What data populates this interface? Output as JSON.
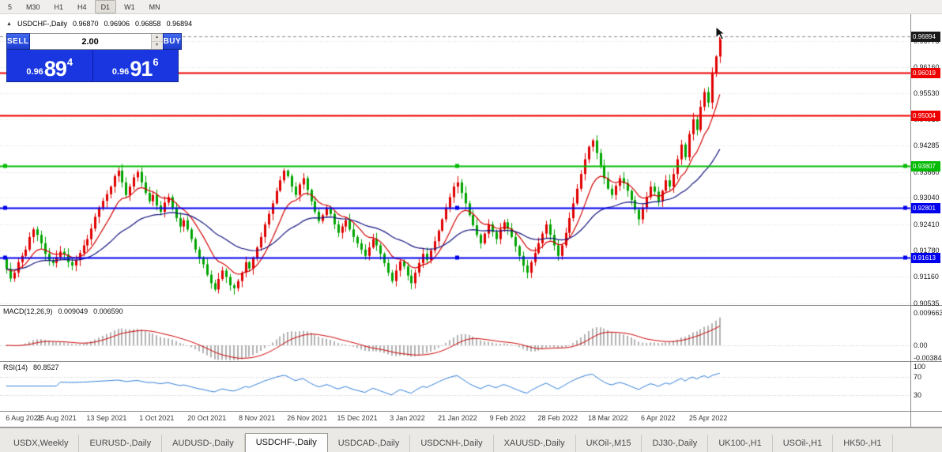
{
  "toolbar": {
    "timeframes": [
      {
        "label": "5",
        "active": false
      },
      {
        "label": "M30",
        "active": false
      },
      {
        "label": "H1",
        "active": false
      },
      {
        "label": "H4",
        "active": false
      },
      {
        "label": "D1",
        "active": true
      },
      {
        "label": "W1",
        "active": false
      },
      {
        "label": "MN",
        "active": false
      }
    ]
  },
  "chart": {
    "symbol_header": {
      "collapse_icon": "▲",
      "title": "USDCHF-,Daily",
      "open": "0.96870",
      "high": "0.96906",
      "low": "0.96858",
      "close": "0.96894"
    },
    "trade_panel": {
      "sell_label": "SELL",
      "buy_label": "BUY",
      "volume": "2.00",
      "sell_price": {
        "prefix": "0.96",
        "big": "89",
        "sup": "4"
      },
      "buy_price": {
        "prefix": "0.96",
        "big": "91",
        "sup": "6"
      }
    }
  },
  "chart_data": {
    "type": "candlestick",
    "symbol": "USDCHF-",
    "timeframe": "Daily",
    "ohlc_current": {
      "open": 0.9687,
      "high": 0.96906,
      "low": 0.96858,
      "close": 0.96894
    },
    "price_range": {
      "top": 0.9734,
      "bottom": 0.9049
    },
    "y_axis_ticks": [
      "0.96775",
      "0.96160",
      "0.95530",
      "0.94910",
      "0.94285",
      "0.93660",
      "0.93040",
      "0.92410",
      "0.91780",
      "0.91160",
      "0.90535"
    ],
    "x_axis_labels": [
      {
        "label": "6 Aug 2021",
        "day": 0
      },
      {
        "label": "25 Aug 2021",
        "day": 13
      },
      {
        "label": "13 Sep 2021",
        "day": 26
      },
      {
        "label": "1 Oct 2021",
        "day": 39
      },
      {
        "label": "20 Oct 2021",
        "day": 52
      },
      {
        "label": "8 Nov 2021",
        "day": 65
      },
      {
        "label": "26 Nov 2021",
        "day": 78
      },
      {
        "label": "15 Dec 2021",
        "day": 91
      },
      {
        "label": "3 Jan 2022",
        "day": 104
      },
      {
        "label": "21 Jan 2022",
        "day": 117
      },
      {
        "label": "9 Feb 2022",
        "day": 130
      },
      {
        "label": "28 Feb 2022",
        "day": 143
      },
      {
        "label": "18 Mar 2022",
        "day": 156
      },
      {
        "label": "6 Apr 2022",
        "day": 169
      },
      {
        "label": "25 Apr 2022",
        "day": 182
      }
    ],
    "first_open": 0.916,
    "closes": [
      0.9135,
      0.9112,
      0.9126,
      0.9151,
      0.9166,
      0.9181,
      0.9211,
      0.9229,
      0.9216,
      0.9196,
      0.9171,
      0.9156,
      0.9149,
      0.9163,
      0.9176,
      0.9169,
      0.9151,
      0.9143,
      0.9156,
      0.9173,
      0.9191,
      0.9206,
      0.9231,
      0.9259,
      0.9281,
      0.9297,
      0.9313,
      0.9331,
      0.9356,
      0.9369,
      0.9341,
      0.9311,
      0.9331,
      0.9353,
      0.9366,
      0.9341,
      0.9316,
      0.9296,
      0.9311,
      0.9286,
      0.9271,
      0.9293,
      0.9306,
      0.9281,
      0.9256,
      0.9236,
      0.9251,
      0.9229,
      0.9206,
      0.9181,
      0.9161,
      0.9146,
      0.9121,
      0.9101,
      0.9086,
      0.9111,
      0.9131,
      0.9116,
      0.9096,
      0.9089,
      0.9106,
      0.9126,
      0.9151,
      0.9136,
      0.9161,
      0.9186,
      0.9211,
      0.9241,
      0.9266,
      0.9291,
      0.9321,
      0.9346,
      0.9369,
      0.9356,
      0.9331,
      0.9311,
      0.9336,
      0.9351,
      0.9323,
      0.9296,
      0.9271,
      0.9249,
      0.9263,
      0.9281,
      0.9266,
      0.9241,
      0.9221,
      0.9236,
      0.9251,
      0.9229,
      0.9211,
      0.9196,
      0.9181,
      0.9166,
      0.9186,
      0.9206,
      0.9191,
      0.9171,
      0.9149,
      0.9126,
      0.9106,
      0.9131,
      0.9153,
      0.9141,
      0.9119,
      0.9101,
      0.9126,
      0.9149,
      0.9171,
      0.9156,
      0.9179,
      0.9201,
      0.9226,
      0.9253,
      0.9281,
      0.9306,
      0.9331,
      0.9341,
      0.9316,
      0.9291,
      0.9263,
      0.9239,
      0.9216,
      0.9196,
      0.9219,
      0.9241,
      0.9223,
      0.9206,
      0.9229,
      0.9246,
      0.9231,
      0.9211,
      0.9189,
      0.9166,
      0.9143,
      0.9126,
      0.9151,
      0.9173,
      0.9196,
      0.9219,
      0.9241,
      0.9216,
      0.9191,
      0.9166,
      0.9191,
      0.9221,
      0.9256,
      0.9291,
      0.9326,
      0.9361,
      0.9396,
      0.9426,
      0.9441,
      0.9411,
      0.9381,
      0.9351,
      0.9326,
      0.9311,
      0.9333,
      0.9351,
      0.9339,
      0.9321,
      0.9299,
      0.9276,
      0.9253,
      0.9281,
      0.9306,
      0.9331,
      0.9319,
      0.9296,
      0.9321,
      0.9346,
      0.9331,
      0.9361,
      0.9396,
      0.9431,
      0.9401,
      0.9456,
      0.9491,
      0.9466,
      0.9521,
      0.9556,
      0.9531,
      0.9601,
      0.9641,
      0.9689
    ],
    "candle_colors": {
      "up": "#e00000",
      "down": "#00a400"
    },
    "levels": [
      {
        "value": 0.96894,
        "label": "0.96894",
        "color": "#1a1a1a",
        "style": "dashed",
        "type": "last-price"
      },
      {
        "value": 0.96019,
        "label": "0.96019",
        "color": "#ee0000",
        "style": "solid",
        "type": "horizontal-line"
      },
      {
        "value": 0.95004,
        "label": "0.95004",
        "color": "#ee0000",
        "style": "solid",
        "type": "horizontal-line"
      },
      {
        "value": 0.93807,
        "label": "0.93807",
        "color": "#00bb00",
        "style": "solid",
        "type": "horizontal-line",
        "handles": true
      },
      {
        "value": 0.92801,
        "label": "0.92801",
        "color": "#0000ee",
        "style": "solid",
        "type": "horizontal-line",
        "handles": true
      },
      {
        "value": 0.91613,
        "label": "0.91613",
        "color": "#0000ee",
        "style": "solid",
        "type": "horizontal-line",
        "handles": true
      }
    ],
    "moving_averages": [
      {
        "period": 10,
        "color": "#d40000"
      },
      {
        "period": 34,
        "color": "#12127e"
      }
    ],
    "macd": {
      "label": "MACD(12,26,9)",
      "fast": 12,
      "slow": 26,
      "signal": 9,
      "value_main": "0.009049",
      "value_signal": "0.006590",
      "axis_labels": [
        {
          "label": "0.009663",
          "value": 0.009663
        },
        {
          "label": "0.00",
          "value": 0
        },
        {
          "label": "-0.00384",
          "value": -0.00384
        }
      ],
      "histogram_color": "#b2b2b2",
      "signal_color": "#cc0000"
    },
    "rsi": {
      "label": "RSI(14)",
      "period": 14,
      "value": "80.8527",
      "color": "#2f7ed8",
      "axis_labels": [
        {
          "label": "100",
          "value": 100
        },
        {
          "label": "70",
          "value": 70
        },
        {
          "label": "30",
          "value": 30
        }
      ],
      "level_lines": [
        70,
        30
      ]
    }
  },
  "tabs": {
    "items": [
      {
        "label": "USDX,Weekly",
        "active": false
      },
      {
        "label": "EURUSD-,Daily",
        "active": false
      },
      {
        "label": "AUDUSD-,Daily",
        "active": false
      },
      {
        "label": "USDCHF-,Daily",
        "active": true
      },
      {
        "label": "USDCAD-,Daily",
        "active": false
      },
      {
        "label": "USDCNH-,Daily",
        "active": false
      },
      {
        "label": "XAUUSD-,Daily",
        "active": false
      },
      {
        "label": "UKOil-,M15",
        "active": false
      },
      {
        "label": "DJ30-,Daily",
        "active": false
      },
      {
        "label": "UK100-,H1",
        "active": false
      },
      {
        "label": "USOil-,H1",
        "active": false
      },
      {
        "label": "HK50-,H1",
        "active": false
      }
    ]
  }
}
